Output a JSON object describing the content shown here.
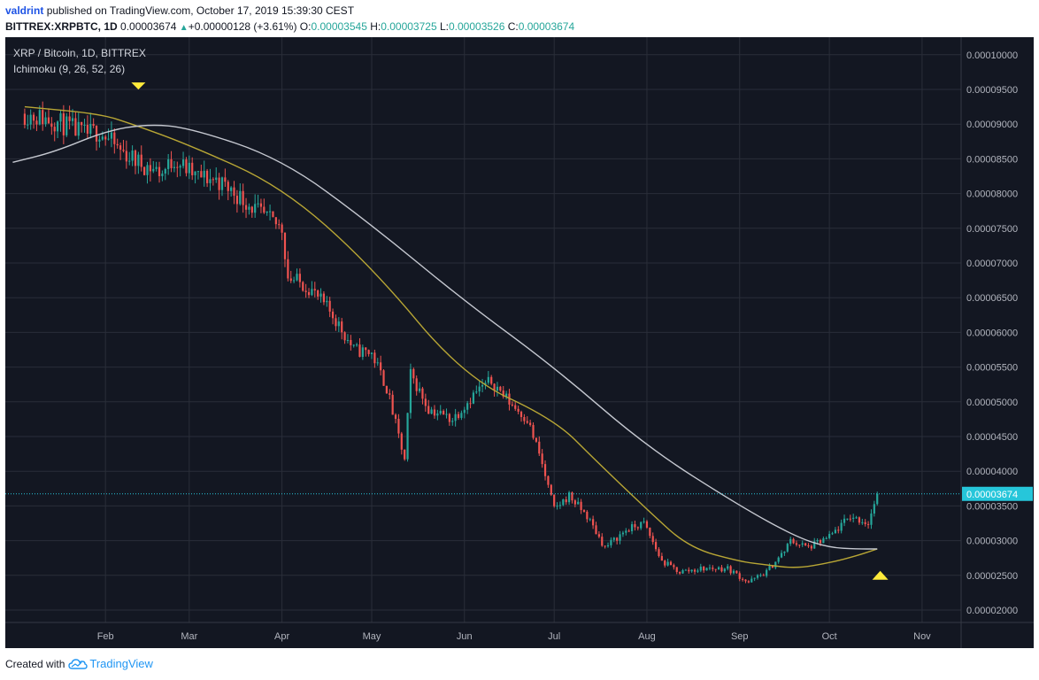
{
  "header": {
    "author": "valdrint",
    "published_text": "published on TradingView.com, October 17, 2019 15:39:30 CEST",
    "symbol": "BITTREX:XRPBTC, 1D",
    "last": "0.00003674",
    "change": "+0.00000128 (+3.61%)",
    "open_label": "O:",
    "open": "0.00003545",
    "high_label": "H:",
    "high": "0.00003725",
    "low_label": "L:",
    "low": "0.00003526",
    "close_label": "C:",
    "close": "0.00003674"
  },
  "legend": {
    "pair": "XRP / Bitcoin, 1D, BITTREX",
    "indicator": "Ichimoku (9, 26, 52, 26)"
  },
  "footer": {
    "created_with": "Created with",
    "brand": "TradingView"
  },
  "colors": {
    "background": "#131722",
    "grid": "#2a2e39",
    "up": "#26a69a",
    "down": "#ef5350",
    "ma_fast": "#b8a635",
    "ma_slow": "#c5c8d0",
    "marker": "#ffeb3b",
    "price_line": "#26c6da"
  },
  "chart_data": {
    "type": "candlestick",
    "pair": "XRP / Bitcoin",
    "exchange": "BITTREX",
    "interval": "1D",
    "x_tick_labels": [
      "Feb",
      "Mar",
      "Apr",
      "May",
      "Jun",
      "Jul",
      "Aug",
      "Sep",
      "Oct",
      "Nov"
    ],
    "y_tick_labels": [
      "0.00002000",
      "0.00002500",
      "0.00003000",
      "0.00003500",
      "0.00004000",
      "0.00004500",
      "0.00005000",
      "0.00005500",
      "0.00006000",
      "0.00006500",
      "0.00007000",
      "0.00007500",
      "0.00008000",
      "0.00008500",
      "0.00009000",
      "0.00009500",
      "0.00010000"
    ],
    "ylim": [
      1.95e-05,
      0.0001035
    ],
    "current_price": 3.674e-05,
    "current_price_label": "0.00003674",
    "grid": true,
    "close_series_approx": {
      "x": [
        "2019-01-05",
        "2019-01-15",
        "2019-01-25",
        "2019-01-30",
        "2019-02-05",
        "2019-02-12",
        "2019-02-20",
        "2019-02-24",
        "2019-03-03",
        "2019-03-10",
        "2019-03-18",
        "2019-03-25",
        "2019-04-01",
        "2019-04-03",
        "2019-04-10",
        "2019-04-18",
        "2019-04-25",
        "2019-05-01",
        "2019-05-06",
        "2019-05-12",
        "2019-05-14",
        "2019-05-20",
        "2019-05-28",
        "2019-06-05",
        "2019-06-10",
        "2019-06-16",
        "2019-06-22",
        "2019-06-26",
        "2019-07-01",
        "2019-07-06",
        "2019-07-12",
        "2019-07-18",
        "2019-07-25",
        "2019-07-31",
        "2019-08-06",
        "2019-08-12",
        "2019-08-20",
        "2019-08-28",
        "2019-09-04",
        "2019-09-10",
        "2019-09-16",
        "2019-09-18",
        "2019-09-24",
        "2019-10-01",
        "2019-10-08",
        "2019-10-14",
        "2019-10-17"
      ],
      "y": [
        9.15e-05,
        9.05e-05,
        8.85e-05,
        8.9e-05,
        8.65e-05,
        8.45e-05,
        8.3e-05,
        8.5e-05,
        8.25e-05,
        8.2e-05,
        7.95e-05,
        7.7e-05,
        7.5e-05,
        6.8e-05,
        6.65e-05,
        6.25e-05,
        5.75e-05,
        5.7e-05,
        5.2e-05,
        4.15e-05,
        5.4e-05,
        4.9e-05,
        4.75e-05,
        5.15e-05,
        5.3e-05,
        5e-05,
        4.75e-05,
        4.25e-05,
        3.45e-05,
        3.65e-05,
        3.35e-05,
        2.9e-05,
        3.15e-05,
        3.25e-05,
        2.7e-05,
        2.55e-05,
        2.6e-05,
        2.6e-05,
        2.4e-05,
        2.55e-05,
        2.85e-05,
        3e-05,
        2.9e-05,
        3.05e-05,
        3.35e-05,
        3.25e-05,
        3.674e-05
      ]
    },
    "series": [
      {
        "x": [
          "2019-01-05",
          "2019-01-30",
          "2019-02-10",
          "2019-03-01",
          "2019-04-01",
          "2019-05-01",
          "2019-06-01",
          "2019-07-01",
          "2019-07-15",
          "2019-08-01",
          "2019-08-15",
          "2019-09-01",
          "2019-09-10",
          "2019-09-20",
          "2019-10-01",
          "2019-10-10",
          "2019-10-17"
        ],
        "values": [
          9.25e-05,
          9.15e-05,
          9e-05,
          8.7e-05,
          8.1e-05,
          6.95e-05,
          5.35e-05,
          4.75e-05,
          4.15e-05,
          3.45e-05,
          2.9e-05,
          2.7e-05,
          2.65e-05,
          2.6e-05,
          2.68e-05,
          2.78e-05,
          2.88e-05
        ]
      },
      {
        "x": [
          "2019-01-01",
          "2019-01-15",
          "2019-02-01",
          "2019-02-15",
          "2019-03-01",
          "2019-04-01",
          "2019-05-01",
          "2019-06-01",
          "2019-07-01",
          "2019-08-01",
          "2019-09-01",
          "2019-09-20",
          "2019-10-01",
          "2019-10-10",
          "2019-10-17"
        ],
        "values": [
          8.45e-05,
          8.6e-05,
          8.9e-05,
          9e-05,
          8.95e-05,
          8.5e-05,
          7.55e-05,
          6.45e-05,
          5.5e-05,
          4.35e-05,
          3.5e-05,
          3.05e-05,
          2.9e-05,
          2.88e-05,
          2.88e-05
        ]
      }
    ],
    "markers": [
      {
        "type": "triangle-down",
        "date": "2019-02-12",
        "value": 9.55e-05
      },
      {
        "type": "triangle-up",
        "date": "2019-10-18",
        "value": 2.5e-05
      }
    ]
  }
}
